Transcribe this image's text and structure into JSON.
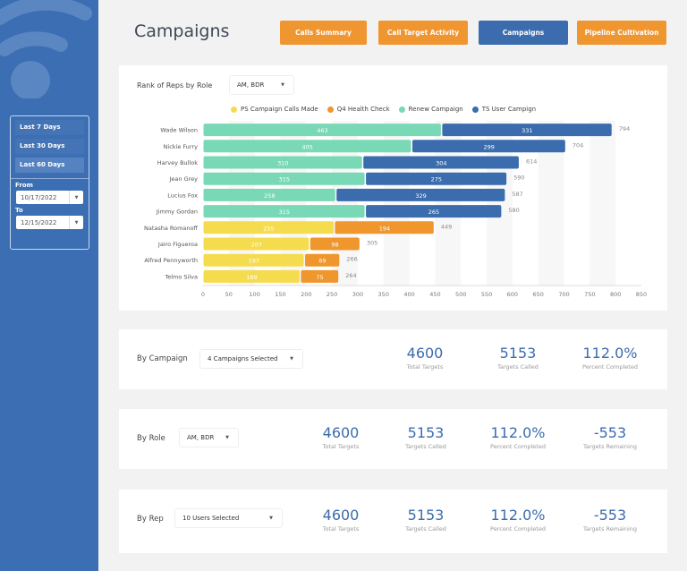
{
  "page": {
    "title": "Campaigns"
  },
  "nav": [
    {
      "label": "Calls Summary",
      "active": false
    },
    {
      "label": "Call Target Activity",
      "active": false
    },
    {
      "label": "Campaigns",
      "active": true
    },
    {
      "label": "Pipeline Cultivation",
      "active": false
    }
  ],
  "sidebar": {
    "ranges": [
      "Last 7 Days",
      "Last 30 Days",
      "Last 60 Days"
    ],
    "active_range": "Last 60 Days",
    "from_label": "From",
    "from_value": "10/17/2022",
    "to_label": "To",
    "to_value": "12/15/2022"
  },
  "chart_section": {
    "label": "Rank of Reps by Role",
    "role_select": "AM, BDR"
  },
  "chart_data": {
    "type": "bar",
    "orientation": "horizontal",
    "stacked": true,
    "categories": [
      "Wade Wilson",
      "Nickie Furry",
      "Harvey Bullok",
      "Jean Grey",
      "Lucius Fox",
      "Jimmy Gordan",
      "Natasha Romanoff",
      "Jairo Figueroa",
      "Alfred Pennyworth",
      "Telmo Silva"
    ],
    "series": [
      {
        "name": "PS Campaign Calls Made",
        "color": "#f5dc4f",
        "values": [
          0,
          0,
          0,
          0,
          0,
          0,
          255,
          207,
          197,
          189
        ]
      },
      {
        "name": "Q4 Health Check",
        "color": "#ef962c",
        "values": [
          0,
          0,
          0,
          0,
          0,
          0,
          194,
          98,
          69,
          75
        ]
      },
      {
        "name": "Renew Campaign",
        "color": "#79d8b5",
        "values": [
          463,
          405,
          310,
          315,
          258,
          315,
          0,
          0,
          0,
          0
        ]
      },
      {
        "name": "TS User Campign",
        "color": "#3b6cad",
        "values": [
          331,
          299,
          304,
          275,
          329,
          265,
          0,
          0,
          0,
          0
        ]
      }
    ],
    "totals": [
      794,
      704,
      614,
      590,
      587,
      580,
      449,
      305,
      266,
      264
    ],
    "xticks": [
      0,
      50,
      100,
      150,
      200,
      250,
      300,
      350,
      400,
      450,
      500,
      550,
      600,
      650,
      700,
      750,
      800,
      850
    ],
    "xlim": [
      0,
      850
    ],
    "legend_position": "top",
    "title": "",
    "xlabel": "",
    "ylabel": ""
  },
  "by_campaign": {
    "label": "By Campaign",
    "select": "4 Campaigns Selected",
    "kpis": [
      {
        "value": "4600",
        "caption": "Total Targets"
      },
      {
        "value": "5153",
        "caption": "Targets Called"
      },
      {
        "value": "112.0%",
        "caption": "Percent Completed"
      }
    ]
  },
  "by_role": {
    "label": "By Role",
    "select": "AM, BDR",
    "kpis": [
      {
        "value": "4600",
        "caption": "Total Targets"
      },
      {
        "value": "5153",
        "caption": "Targets Called"
      },
      {
        "value": "112.0%",
        "caption": "Percent Completed"
      },
      {
        "value": "-553",
        "caption": "Targets Remaining"
      }
    ]
  },
  "by_rep": {
    "label": "By Rep",
    "select": "10 Users Selected",
    "kpis": [
      {
        "value": "4600",
        "caption": "Total Targets"
      },
      {
        "value": "5153",
        "caption": "Targets Called"
      },
      {
        "value": "112.0%",
        "caption": "Percent Completed"
      },
      {
        "value": "-553",
        "caption": "Targets Remaining"
      }
    ]
  }
}
